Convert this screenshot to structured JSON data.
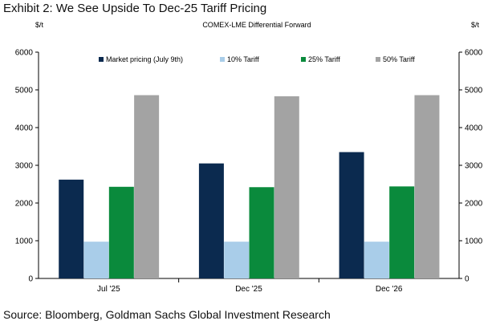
{
  "exhibit_title": "Exhibit 2: We See Upside To Dec-25 Tariff Pricing",
  "source": "Source: Bloomberg, Goldman Sachs Global Investment Research",
  "chart_data": {
    "type": "bar",
    "title": "COMEX-LME  Differential Forward",
    "ylabel_left": "$/t",
    "ylabel_right": "$/t",
    "xlabel": "",
    "ylim": [
      0,
      6000
    ],
    "yticks": [
      "0",
      "1000",
      "2000",
      "3000",
      "4000",
      "5000",
      "6000"
    ],
    "ytick_values": [
      0,
      1000,
      2000,
      3000,
      4000,
      5000,
      6000
    ],
    "grid": false,
    "legend_position": "top",
    "categories": [
      "Jul '25",
      "Dec '25",
      "Dec '26"
    ],
    "series": [
      {
        "name": "Market pricing (July 9th)",
        "color": "#0b2a4f",
        "values": [
          2620,
          3050,
          3350
        ]
      },
      {
        "name": "10% Tariff",
        "color": "#a9cde9",
        "values": [
          975,
          975,
          975
        ]
      },
      {
        "name": "25% Tariff",
        "color": "#0a8a3c",
        "values": [
          2430,
          2420,
          2440
        ]
      },
      {
        "name": "50% Tariff",
        "color": "#a3a3a3",
        "values": [
          4860,
          4830,
          4860
        ]
      }
    ]
  }
}
